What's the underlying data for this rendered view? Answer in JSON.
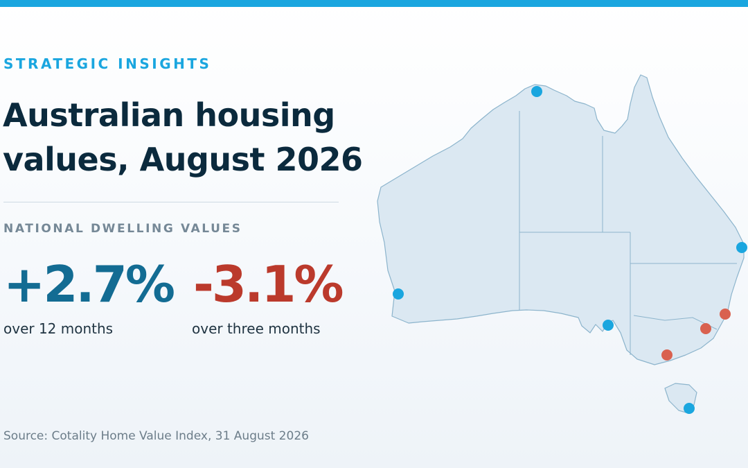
{
  "header": {
    "eyebrow": "STRATEGIC INSIGHTS",
    "title": "Australian housing values, August 2026"
  },
  "section": {
    "label": "NATIONAL DWELLING VALUES"
  },
  "stats": [
    {
      "value": "+2.7%",
      "caption": "over 12 months",
      "color": "#136c93"
    },
    {
      "value": "-3.1%",
      "caption": "over three months",
      "color": "#bb3a2c"
    }
  ],
  "source": "Source: Cotality Home Value Index, 31 August 2026",
  "map": {
    "icon": "australia-map-icon",
    "fill_color": "#dbe8f2",
    "outline_color": "#8cb4cc",
    "markers": [
      {
        "name": "northern-city-marker",
        "status": "positive",
        "color": "#1aa6df"
      },
      {
        "name": "east-coast-city-marker",
        "status": "positive",
        "color": "#1aa6df"
      },
      {
        "name": "west-coast-city-marker",
        "status": "positive",
        "color": "#1aa6df"
      },
      {
        "name": "south-city-marker",
        "status": "positive",
        "color": "#1aa6df"
      },
      {
        "name": "southeast-city-marker-1",
        "status": "negative",
        "color": "#d9614f"
      },
      {
        "name": "southeast-city-marker-2",
        "status": "negative",
        "color": "#d9614f"
      },
      {
        "name": "southeast-city-marker-3",
        "status": "negative",
        "color": "#d9614f"
      },
      {
        "name": "tasmania-city-marker",
        "status": "positive",
        "color": "#1aa6df"
      }
    ]
  }
}
